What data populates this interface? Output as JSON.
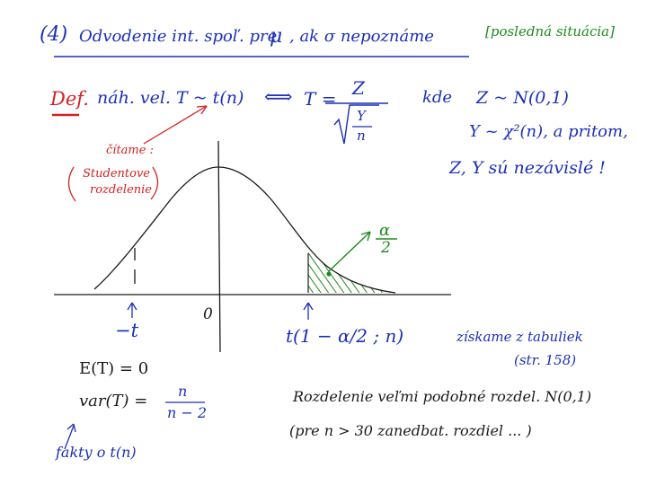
{
  "header": {
    "number": "(4)",
    "title": "Odvodenie int. spoľ. pre",
    "mu_symbol": "μ",
    "condition": ", ak σ nepoznáme",
    "note": "[posledná situácia]"
  },
  "definition": {
    "label": "Def.",
    "text": "náh. vel. T ~ t(n)",
    "iff": "⟺",
    "T_eq": "T =",
    "numerator": "Z",
    "root_num": "Y",
    "root_den": "n",
    "kde": "kde",
    "cond1": "Z ~ N(0,1)",
    "cond2": "Y ~ χ²(n), a pritom,",
    "cond3": "Z, Y sú nezávislé !"
  },
  "red_note": {
    "line1": "čítame :",
    "line2": "Studentove",
    "line3": "rozdelenie"
  },
  "graph": {
    "alpha_top": "α",
    "alpha_bottom": "2",
    "zero": "0",
    "minus_t": "−t",
    "t_right": "t(1 − α/2 ; n)"
  },
  "notes_right": {
    "line1": "získame z tabuliek",
    "line2": "(str. 158)"
  },
  "facts": {
    "expectation": "E(T) = 0",
    "variance_left": "var(T) =",
    "variance_num": "n",
    "variance_den": "n − 2",
    "label": "fakty o  t(n)"
  },
  "remarks": {
    "line1": "Rozdelenie veľmi podobné rozdel. N(0,1)",
    "line2": "(pre n > 30 zanedbat. rozdiel ... )"
  }
}
